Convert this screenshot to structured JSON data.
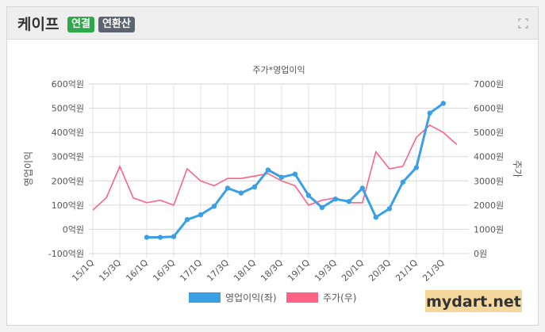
{
  "header": {
    "company": "케이프",
    "badge_consolidated": "연결",
    "badge_annualized": "연환산",
    "expand_icon": "expand-icon"
  },
  "colors": {
    "operating_profit": "#3aa0e6",
    "stock_price": "#ff6384",
    "badge_green": "#2ea84a",
    "badge_gray": "#5b6470"
  },
  "chart_data": {
    "type": "line",
    "title": "주가*영업이익",
    "ylabel_left": "영업이익",
    "ylabel_right": "주가",
    "ylim_left": [
      -100,
      600
    ],
    "ylim_right": [
      0,
      7000
    ],
    "yticks_left": [
      "-100억원",
      "0억원",
      "100억원",
      "200억원",
      "300억원",
      "400억원",
      "500억원",
      "600억원"
    ],
    "yticks_right": [
      "0원",
      "1000원",
      "2000원",
      "3000원",
      "4000원",
      "5000원",
      "6000원",
      "7000원"
    ],
    "categories": [
      "15/1Q",
      "15/3Q",
      "16/1Q",
      "16/3Q",
      "17/1Q",
      "17/3Q",
      "18/1Q",
      "18/3Q",
      "19/1Q",
      "19/3Q",
      "20/1Q",
      "20/3Q",
      "21/1Q",
      "21/3Q"
    ],
    "grid": true,
    "legend_position": "bottom",
    "series": [
      {
        "name": "영업이익(좌)",
        "axis": "left",
        "x": [
          2016.0,
          2016.25,
          2016.5,
          2016.75,
          2017.0,
          2017.25,
          2017.5,
          2017.75,
          2018.0,
          2018.25,
          2018.5,
          2018.75,
          2019.0,
          2019.25,
          2019.5,
          2019.75,
          2020.0,
          2020.25,
          2020.5,
          2020.75,
          2021.0,
          2021.25,
          2021.5
        ],
        "values": [
          -33,
          -33,
          -30,
          40,
          60,
          95,
          170,
          150,
          175,
          245,
          215,
          228,
          140,
          90,
          125,
          115,
          170,
          50,
          85,
          195,
          255,
          480,
          520
        ]
      },
      {
        "name": "주가(우)",
        "axis": "right",
        "x": [
          2015.0,
          2015.25,
          2015.5,
          2015.75,
          2016.0,
          2016.25,
          2016.5,
          2016.75,
          2017.0,
          2017.25,
          2017.5,
          2017.75,
          2018.0,
          2018.25,
          2018.5,
          2018.75,
          2019.0,
          2019.25,
          2019.5,
          2019.75,
          2020.0,
          2020.25,
          2020.5,
          2020.75,
          2021.0,
          2021.25,
          2021.5,
          2021.75
        ],
        "values": [
          1800,
          2300,
          3600,
          2300,
          2100,
          2200,
          2000,
          3500,
          3000,
          2800,
          3100,
          3100,
          3200,
          3300,
          3000,
          2800,
          2000,
          2200,
          2300,
          2100,
          2100,
          4200,
          3500,
          3600,
          4800,
          5300,
          5000,
          4500
        ]
      }
    ]
  },
  "watermark": "mydart.net"
}
